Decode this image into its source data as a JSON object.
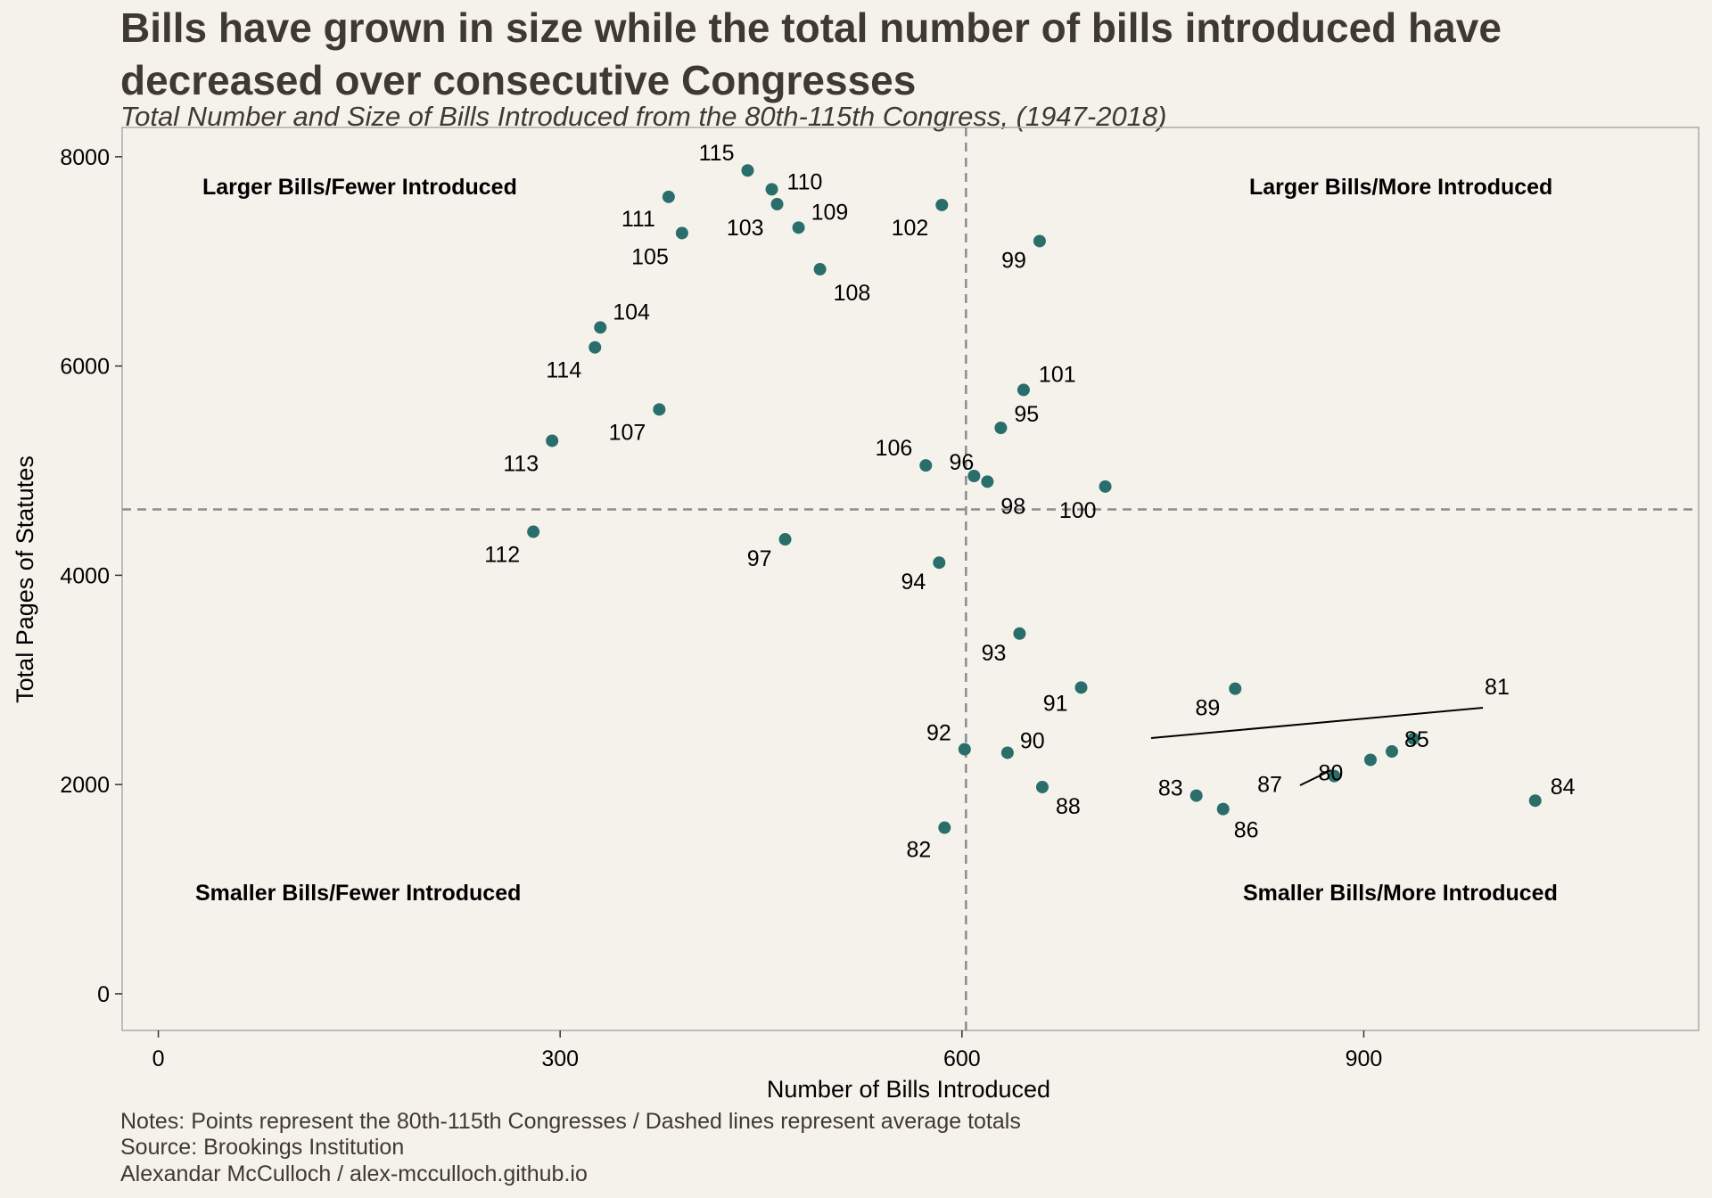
{
  "chart_data": {
    "type": "scatter",
    "title_lines": [
      "Bills have grown in size while the total number of bills introduced have",
      "decreased over consecutive Congresses"
    ],
    "subtitle": "Total Number and Size of Bills Introduced from the 80th-115th Congress, (1947-2018)",
    "xlabel": "Number of Bills Introduced",
    "ylabel": "Total Pages of Statutes",
    "xlim": [
      -27,
      1150
    ],
    "ylim": [
      -350,
      8280
    ],
    "x_ticks": [
      0,
      300,
      600,
      900
    ],
    "y_ticks": [
      0,
      2000,
      4000,
      6000,
      8000
    ],
    "x_tick_labels": [
      "0",
      "300",
      "600",
      "900"
    ],
    "y_tick_labels": [
      "0",
      "2000",
      "4000",
      "6000",
      "8000"
    ],
    "grid": false,
    "point_color": "#2a6e6b",
    "reference_lines": {
      "x_mean": 603,
      "y_mean": 4630,
      "style": "dashed",
      "color": "#8c8c8c"
    },
    "quadrant_labels": {
      "top_left": "Larger Bills/Fewer Introduced",
      "top_right": "Larger Bills/More Introduced",
      "bottom_left": "Smaller Bills/Fewer Introduced",
      "bottom_right": "Smaller Bills/More Introduced"
    },
    "points": [
      {
        "label": "80",
        "x": 878,
        "y": 2081
      },
      {
        "label": "81",
        "x": 937,
        "y": 2437
      },
      {
        "label": "82",
        "x": 587,
        "y": 1588
      },
      {
        "label": "83",
        "x": 775,
        "y": 1894
      },
      {
        "label": "84",
        "x": 1028,
        "y": 1846
      },
      {
        "label": "85",
        "x": 921,
        "y": 2316
      },
      {
        "label": "86",
        "x": 795,
        "y": 1766
      },
      {
        "label": "87",
        "x": 905,
        "y": 2236
      },
      {
        "label": "88",
        "x": 660,
        "y": 1976
      },
      {
        "label": "89",
        "x": 804,
        "y": 2916
      },
      {
        "label": "90",
        "x": 634,
        "y": 2304
      },
      {
        "label": "91",
        "x": 689,
        "y": 2927
      },
      {
        "label": "92",
        "x": 602,
        "y": 2337
      },
      {
        "label": "93",
        "x": 643,
        "y": 3443
      },
      {
        "label": "94",
        "x": 583,
        "y": 4121
      },
      {
        "label": "95",
        "x": 629,
        "y": 5409
      },
      {
        "label": "96",
        "x": 609,
        "y": 4949
      },
      {
        "label": "97",
        "x": 468,
        "y": 4344
      },
      {
        "label": "98",
        "x": 619,
        "y": 4895
      },
      {
        "label": "99",
        "x": 658,
        "y": 7194
      },
      {
        "label": "100",
        "x": 707,
        "y": 4848
      },
      {
        "label": "101",
        "x": 646,
        "y": 5772
      },
      {
        "label": "102",
        "x": 585,
        "y": 7539
      },
      {
        "label": "103",
        "x": 462,
        "y": 7547
      },
      {
        "label": "104",
        "x": 330,
        "y": 6369
      },
      {
        "label": "105",
        "x": 391,
        "y": 7271
      },
      {
        "label": "106",
        "x": 573,
        "y": 5050
      },
      {
        "label": "107",
        "x": 374,
        "y": 5585
      },
      {
        "label": "108",
        "x": 494,
        "y": 6925
      },
      {
        "label": "109",
        "x": 478,
        "y": 7323
      },
      {
        "label": "110",
        "x": 458,
        "y": 7689
      },
      {
        "label": "111",
        "x": 381,
        "y": 7617
      },
      {
        "label": "112",
        "x": 280,
        "y": 4416
      },
      {
        "label": "113",
        "x": 294,
        "y": 5286
      },
      {
        "label": "114",
        "x": 326,
        "y": 6178
      },
      {
        "label": "115",
        "x": 440,
        "y": 7869
      }
    ]
  },
  "caption": {
    "line1": "Notes: Points represent the 80th-115th Congresses / Dashed lines represent average totals",
    "line2": "Source: Brookings Institution",
    "line3": "Alexandar McCulloch / alex-mcculloch.github.io"
  }
}
